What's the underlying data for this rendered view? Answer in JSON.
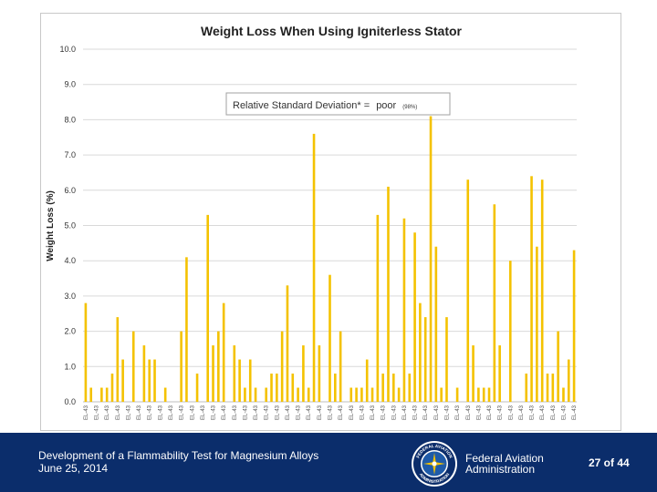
{
  "chart_data": {
    "type": "bar",
    "title": "Weight Loss When Using Igniterless Stator",
    "ylabel": "Weight Loss (%)",
    "xlabel": "",
    "ylim": [
      0,
      10
    ],
    "y_ticks": [
      "0.0",
      "1.0",
      "2.0",
      "3.0",
      "4.0",
      "5.0",
      "6.0",
      "7.0",
      "8.0",
      "9.0",
      "10.0"
    ],
    "grid": true,
    "annotation": {
      "label": "Relative Standard Deviation* =",
      "value": "poor",
      "note": "(98%)"
    },
    "categories": [
      "EL-43",
      "EL-43",
      "EL-43",
      "EL-43",
      "EL-43",
      "EL-43",
      "EL-43",
      "EL-43",
      "EL-43",
      "EL-43",
      "EL-43",
      "EL-43",
      "EL-43",
      "EL-43",
      "EL-43",
      "EL-43",
      "EL-43",
      "EL-43",
      "EL-43",
      "EL-43",
      "EL-43",
      "EL-43",
      "EL-43",
      "EL-43",
      "EL-43",
      "EL-43",
      "EL-43",
      "EL-43",
      "EL-43",
      "EL-43",
      "EL-43",
      "EL-43",
      "EL-43",
      "EL-43",
      "EL-43",
      "EL-43",
      "EL-43",
      "EL-43",
      "EL-43",
      "EL-43",
      "EL-43",
      "EL-43",
      "EL-43",
      "EL-43",
      "EL-43",
      "EL-43",
      "EL-43",
      "EL-43",
      "EL-43",
      "EL-43",
      "EL-43",
      "EL-43",
      "EL-43",
      "EL-43",
      "EL-43",
      "EL-43",
      "EL-43",
      "EL-43",
      "EL-43",
      "EL-43",
      "EL-43",
      "EL-43",
      "EL-43",
      "EL-43",
      "EL-43",
      "EL-43",
      "EL-43",
      "EL-43",
      "EL-43",
      "EL-43",
      "EL-43",
      "EL-43",
      "EL-43",
      "EL-43",
      "EL-43",
      "EL-43",
      "EL-43",
      "EL-43",
      "EL-43",
      "EL-43",
      "EL-43",
      "EL-43",
      "EL-43",
      "EL-43",
      "EL-43",
      "EL-43",
      "EL-43",
      "EL-43",
      "EL-43",
      "EL-43",
      "EL-43",
      "EL-43",
      "EL-43"
    ],
    "values": [
      2.8,
      0.4,
      0,
      0.4,
      0.4,
      0.8,
      2.4,
      1.2,
      0,
      2.0,
      0,
      1.6,
      1.2,
      1.2,
      0,
      0.4,
      0,
      0,
      2.0,
      4.1,
      0,
      0.8,
      0,
      5.3,
      1.6,
      2.0,
      2.8,
      0,
      1.6,
      1.2,
      0.4,
      1.2,
      0.4,
      0,
      0.4,
      0.8,
      0.8,
      2.0,
      3.3,
      0.8,
      0.4,
      1.6,
      0.4,
      7.6,
      1.6,
      0,
      3.6,
      0.8,
      2.0,
      0,
      0.4,
      0.4,
      0.4,
      1.2,
      0.4,
      5.3,
      0.8,
      6.1,
      0.8,
      0.4,
      5.2,
      0.8,
      4.8,
      2.8,
      2.4,
      8.1,
      4.4,
      0.4,
      2.4,
      0,
      0.4,
      0,
      6.3,
      1.6,
      0.4,
      0.4,
      0.4,
      5.6,
      1.6,
      0,
      4.0,
      0,
      0,
      0.8,
      6.4,
      4.4,
      6.3,
      0.8,
      0.8,
      2.0,
      0.4,
      1.2,
      4.3
    ],
    "colors": {
      "bar": "#f4c200",
      "grid": "#d9d9d9",
      "text": "#333333"
    }
  },
  "footer": {
    "line1": "Development of a Flammability Test for Magnesium Alloys",
    "line2": "June 25, 2014",
    "agency_line1": "Federal Aviation",
    "agency_line2": "Administration",
    "seal_text_top": "FEDERAL AVIATION",
    "seal_text_bottom": "ADMINISTRATION",
    "page": "27 of 44",
    "colors": {
      "background": "#0b2d6b",
      "text": "#ffffff"
    }
  }
}
